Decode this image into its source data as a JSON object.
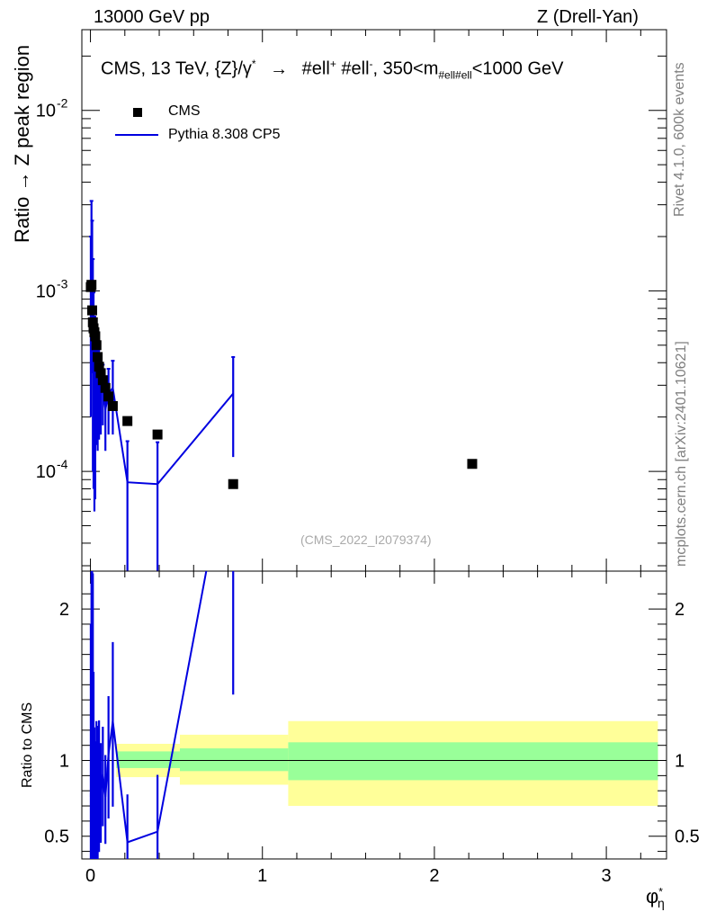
{
  "header": {
    "left": "13000 GeV pp",
    "right": "Z (Drell-Yan)"
  },
  "side_labels": {
    "rivet": "Rivet 4.1.0,  600k events",
    "mcplots": "mcplots.cern.ch [arXiv:2401.10621]"
  },
  "chart_data": {
    "type": "scatter",
    "title": "CMS, 13 TeV, {Z}/γ*  →  #ell+ #ell-, 350<m_#ell#ell<1000 GeV",
    "title_parts": {
      "a": "CMS, 13 TeV, {Z}/",
      "gamma": "γ",
      "star": "*",
      "arrow": "→",
      "b": "#ell",
      "plus": "+",
      "c": " #ell",
      "minus": "-",
      "d": ", 350<m",
      "sub": "#ell#ell",
      "e": "<1000 GeV"
    },
    "watermark": "(CMS_2022_I2079374)",
    "xlabel": "φ*η",
    "xlabel_parts": {
      "main": "φ",
      "sup": "*",
      "sub": "η"
    },
    "ylabel": "Ratio → Z peak region",
    "ratio_ylabel": "Ratio to CMS",
    "xlim": [
      -0.05,
      3.35
    ],
    "ylim": [
      2.8e-05,
      0.028
    ],
    "yscale": "log",
    "ratio_ylim": [
      0.35,
      2.25
    ],
    "x_ticks": [
      0,
      1,
      2,
      3
    ],
    "x_tick_labels": [
      "0",
      "1",
      "2",
      "3"
    ],
    "y_ticks": [
      0.0001,
      0.001,
      0.01
    ],
    "y_tick_labels": [
      "10^-4",
      "10^-3",
      "10^-2"
    ],
    "ratio_ticks": [
      0.5,
      1,
      2
    ],
    "ratio_tick_labels": [
      "0.5",
      "1",
      "2"
    ],
    "legend": [
      "CMS",
      "Pythia 8.308 CP5"
    ],
    "legend_position": "top-left",
    "series": [
      {
        "name": "CMS",
        "marker": "square",
        "color": "#000000",
        "x": [
          0.002,
          0.006,
          0.01,
          0.014,
          0.018,
          0.023,
          0.028,
          0.035,
          0.042,
          0.05,
          0.06,
          0.072,
          0.087,
          0.105,
          0.13,
          0.215,
          0.39,
          0.83,
          2.22
        ],
        "y": [
          0.00105,
          0.00108,
          0.00078,
          0.00067,
          0.00062,
          0.00059,
          0.00056,
          0.0005,
          0.00043,
          0.00038,
          0.00035,
          0.00032,
          0.00029,
          0.00026,
          0.00023,
          0.00019,
          0.00016,
          8.5e-05,
          0.00011
        ]
      },
      {
        "name": "Pythia 8.308 CP5",
        "marker": "line",
        "color": "#0000e0",
        "x": [
          0.002,
          0.006,
          0.01,
          0.014,
          0.018,
          0.023,
          0.028,
          0.035,
          0.042,
          0.05,
          0.06,
          0.072,
          0.087,
          0.105,
          0.13,
          0.215,
          0.39,
          0.83
        ],
        "y": [
          0.0008,
          0.00135,
          0.00155,
          0.0009,
          0.00058,
          0.00042,
          0.00038,
          0.00041,
          0.00035,
          0.00033,
          0.00028,
          0.00029,
          0.00022,
          0.00027,
          0.00029,
          8.7e-05,
          8.5e-05,
          0.00027
        ],
        "yerr_low": [
          0.0006,
          0.001,
          0.0012,
          0.0008,
          0.0005,
          0.00036,
          0.00031,
          0.00027,
          0.00022,
          0.00018,
          0.00012,
          0.00011,
          9e-05,
          0.00011,
          0.00013,
          8e-05,
          8e-05,
          0.00015
        ],
        "yerr_high": [
          0.0012,
          0.0018,
          0.0009,
          0.0006,
          0.0004,
          0.0003,
          0.00025,
          0.00022,
          0.00018,
          0.00015,
          0.00011,
          0.0001,
          8e-05,
          0.0001,
          0.00012,
          6e-05,
          6e-05,
          0.00016
        ],
        "ratio": [
          0.76,
          1.25,
          1.99,
          1.34,
          0.94,
          0.71,
          0.68,
          0.82,
          0.81,
          0.87,
          0.8,
          0.91,
          0.76,
          1.04,
          1.26,
          0.46,
          0.53,
          3.2
        ]
      }
    ],
    "ratio_bands": [
      {
        "x0": 0.15,
        "x1": 0.52,
        "inner": [
          0.95,
          1.06
        ],
        "outer": [
          0.89,
          1.11
        ]
      },
      {
        "x0": 0.52,
        "x1": 1.15,
        "inner": [
          0.93,
          1.08
        ],
        "outer": [
          0.84,
          1.17
        ]
      },
      {
        "x0": 1.15,
        "x1": 3.3,
        "inner": [
          0.87,
          1.12
        ],
        "outer": [
          0.7,
          1.26
        ]
      }
    ],
    "band_colors": {
      "inner": "#99ff99",
      "outer": "#ffff99"
    }
  }
}
